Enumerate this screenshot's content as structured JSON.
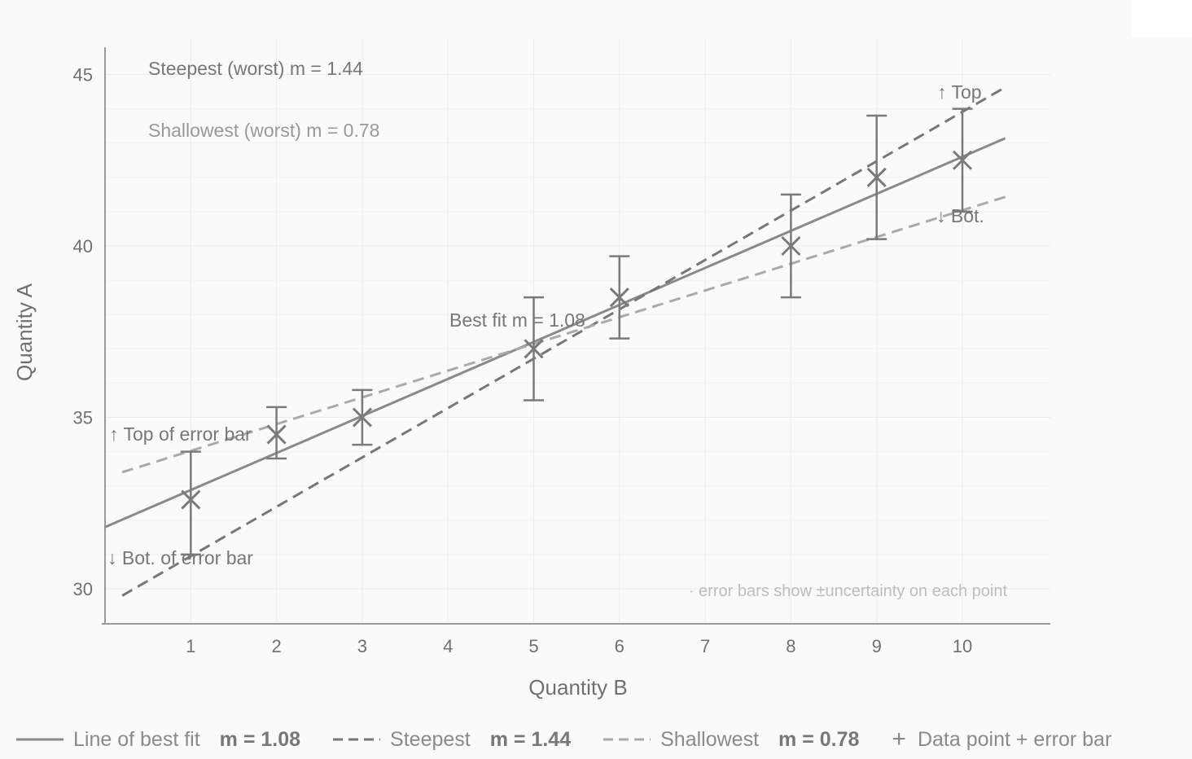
{
  "chart_data": {
    "type": "scatter",
    "title": "",
    "xlabel": "Quantity B",
    "ylabel": "Quantity A",
    "xlim": [
      0,
      11
    ],
    "ylim": [
      29,
      46
    ],
    "xticks": [
      1,
      2,
      3,
      4,
      5,
      6,
      7,
      8,
      9,
      10
    ],
    "yticks": [
      30,
      35,
      40,
      45
    ],
    "grid": true,
    "points": [
      {
        "x": 1,
        "y": 32.6,
        "err_high": 34.0,
        "err_low": 31.0
      },
      {
        "x": 2,
        "y": 34.5,
        "err_high": 35.3,
        "err_low": 33.8
      },
      {
        "x": 3,
        "y": 35.0,
        "err_high": 35.8,
        "err_low": 34.2
      },
      {
        "x": 5,
        "y": 37.0,
        "err_high": 38.5,
        "err_low": 35.5
      },
      {
        "x": 6,
        "y": 38.5,
        "err_high": 39.7,
        "err_low": 37.3
      },
      {
        "x": 8,
        "y": 40.0,
        "err_high": 41.5,
        "err_low": 38.5
      },
      {
        "x": 9,
        "y": 42.0,
        "err_high": 43.8,
        "err_low": 40.2
      },
      {
        "x": 10,
        "y": 42.5,
        "err_high": 44.0,
        "err_low": 41.0
      }
    ],
    "lines": [
      {
        "name": "Line of best fit",
        "slope": 1.08,
        "x": [
          0,
          10.5
        ],
        "y": [
          31.8,
          43.14
        ],
        "style": "solid",
        "color": "#8a8a8a"
      },
      {
        "name": "Steepest",
        "slope": 1.44,
        "x": [
          0.2,
          10.5
        ],
        "y": [
          29.8,
          44.63
        ],
        "style": "dash",
        "color": "#777777"
      },
      {
        "name": "Shallowest",
        "slope": 0.78,
        "x": [
          0.2,
          10.5
        ],
        "y": [
          33.4,
          41.43
        ],
        "style": "dash",
        "color": "#aaaaaa"
      }
    ],
    "annotations": {
      "steepest": "Steepest (worst) m = 1.44",
      "shallowest": "Shallowest (worst) m = 0.78",
      "best_fit": "Best fit m = 1.08",
      "top_left": "↑ Top of error bar",
      "bot_left": "↓ Bot. of error bar",
      "top_right": "↑ Top",
      "bot_right": "↓ Bot.",
      "note": "· error bars show ±uncertainty on each point"
    },
    "legend": [
      {
        "label": "Line of best fit",
        "slope": "m = 1.08",
        "style": "solid"
      },
      {
        "label": "Steepest",
        "slope": "m = 1.44",
        "style": "dash"
      },
      {
        "label": "Shallowest",
        "slope": "m = 0.78",
        "style": "dash-light"
      },
      {
        "label": "Data point + error bar",
        "slope": "",
        "style": "plus"
      }
    ],
    "legend_position": "bottom"
  }
}
